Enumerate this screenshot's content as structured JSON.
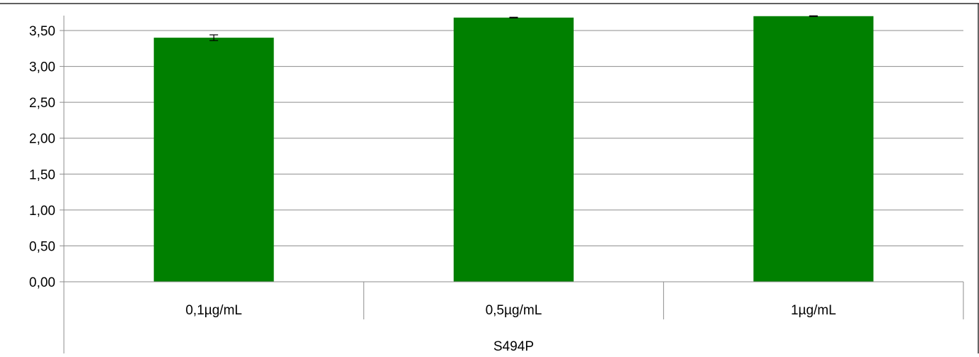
{
  "chart_data": {
    "type": "bar",
    "title": "",
    "xlabel": "",
    "ylabel": "",
    "group_label": "S494P",
    "categories": [
      "0,1µg/mL",
      "0,5µg/mL",
      "1µg/mL"
    ],
    "series": [
      {
        "values": [
          3.4,
          3.68,
          3.7
        ],
        "errors": [
          0.04,
          0.005,
          0.005
        ]
      }
    ],
    "ylim": [
      0,
      3.7
    ],
    "yticks": [
      0,
      0.5,
      1.0,
      1.5,
      2.0,
      2.5,
      3.0,
      3.5
    ],
    "ytick_labels": [
      "0,00",
      "0,50",
      "1,00",
      "1,50",
      "2,00",
      "2,50",
      "3,00",
      "3,50"
    ],
    "grid": true,
    "legend": "none",
    "colors": {
      "bar": "#008000",
      "grid": "#8c8c8c",
      "axis": "#8c8c8c",
      "text": "#000000",
      "error_bar": "#000000"
    }
  }
}
